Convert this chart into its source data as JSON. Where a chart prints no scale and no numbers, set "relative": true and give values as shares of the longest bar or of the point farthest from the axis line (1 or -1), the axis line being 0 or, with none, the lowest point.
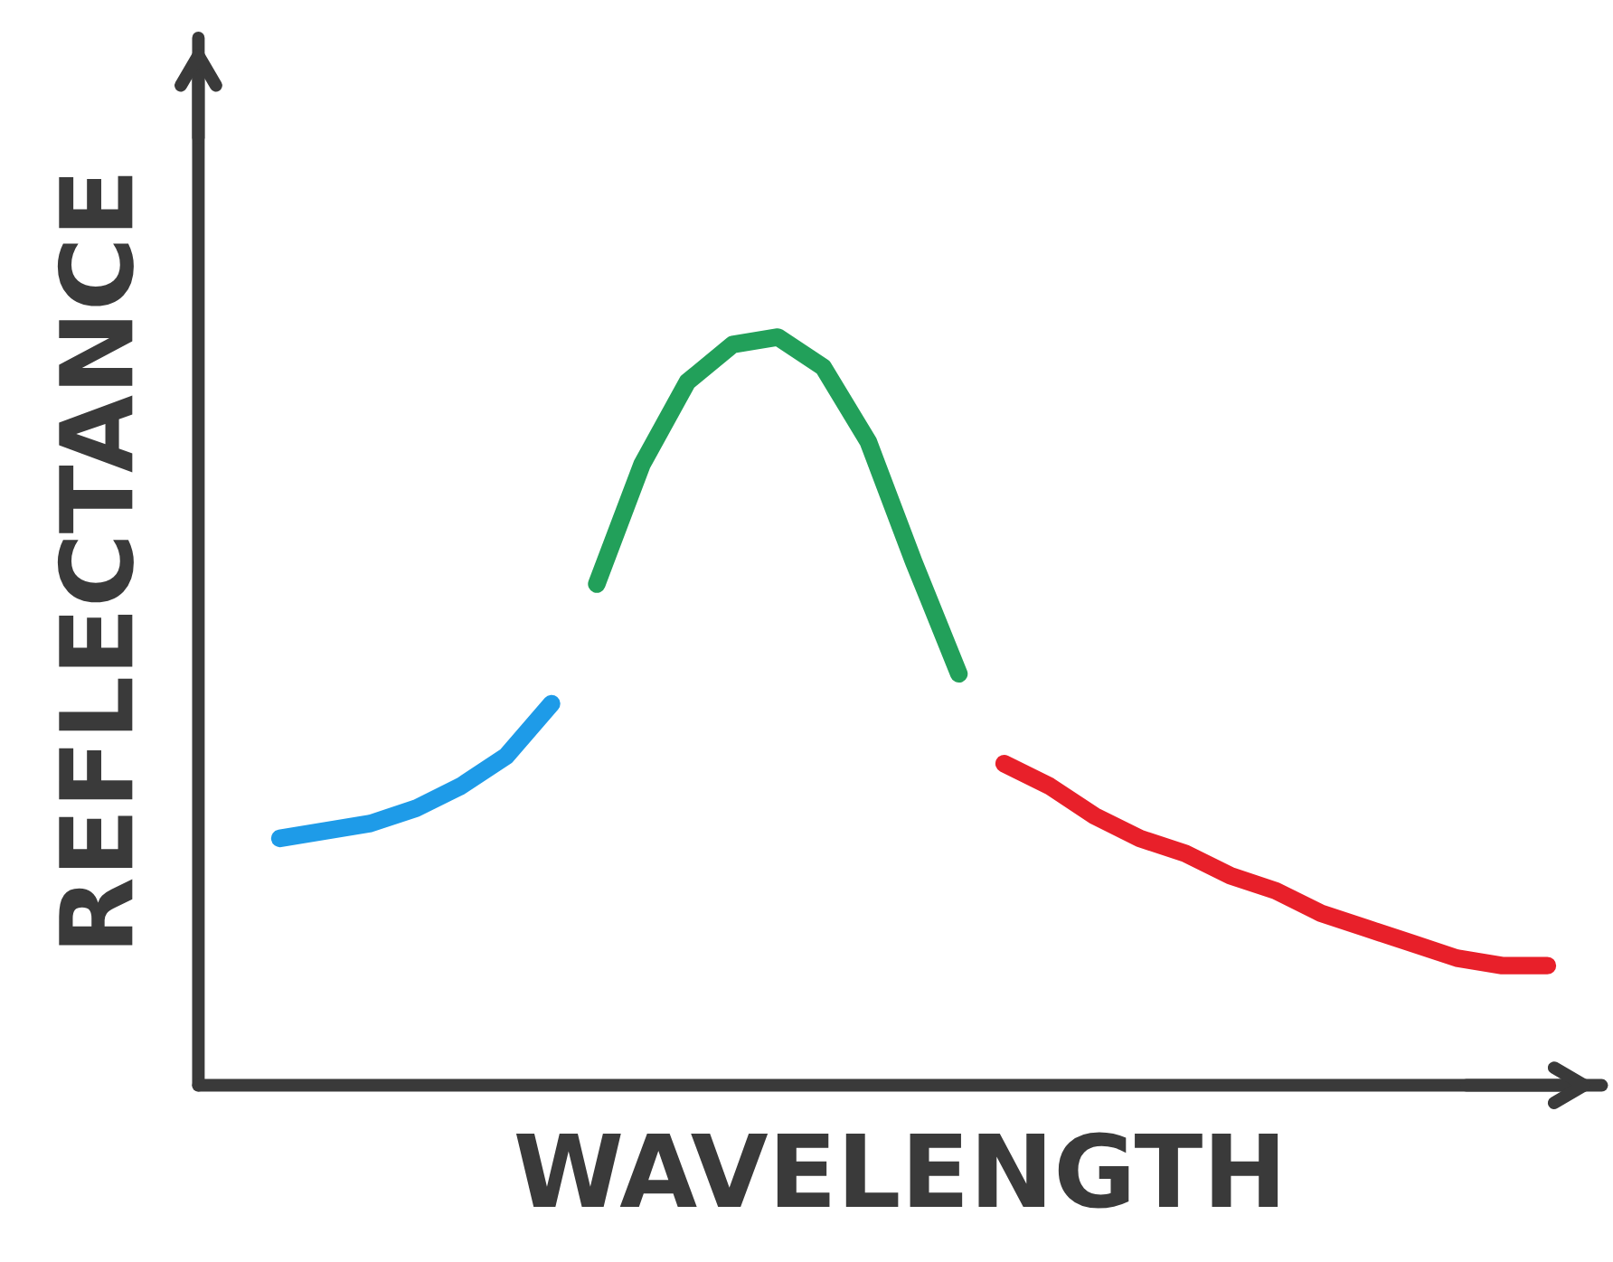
{
  "chart_data": {
    "type": "line",
    "relative": true,
    "xlabel": "WAVELENGTH",
    "ylabel": "REFLECTANCE",
    "categories": [
      null,
      null,
      null,
      null,
      null,
      null,
      null,
      null,
      null,
      null,
      null,
      null,
      null,
      null,
      null,
      null,
      null,
      null,
      null,
      null,
      null,
      null,
      null,
      null,
      null,
      null,
      null,
      null,
      null
    ],
    "series": [
      {
        "color": "#1e9be8",
        "values": [
          0.33,
          0.34,
          0.35,
          0.37,
          0.4,
          0.44,
          0.51,
          null,
          null,
          null,
          null,
          null,
          null,
          null,
          null,
          null,
          null,
          null,
          null,
          null,
          null,
          null,
          null,
          null,
          null,
          null,
          null,
          null,
          null
        ]
      },
      {
        "color": "#22a05a",
        "values": [
          null,
          null,
          null,
          null,
          null,
          null,
          null,
          0.67,
          0.83,
          0.94,
          0.99,
          1.0,
          0.96,
          0.86,
          0.7,
          0.55,
          null,
          null,
          null,
          null,
          null,
          null,
          null,
          null,
          null,
          null,
          null,
          null,
          null
        ]
      },
      {
        "color": "#e8202a",
        "values": [
          null,
          null,
          null,
          null,
          null,
          null,
          null,
          null,
          null,
          null,
          null,
          null,
          null,
          null,
          null,
          null,
          0.43,
          0.4,
          0.36,
          0.33,
          0.31,
          0.28,
          0.26,
          0.23,
          0.21,
          0.19,
          0.17,
          0.16,
          0.16
        ]
      }
    ],
    "legend": false,
    "marker": "none",
    "line_style": "solid"
  }
}
